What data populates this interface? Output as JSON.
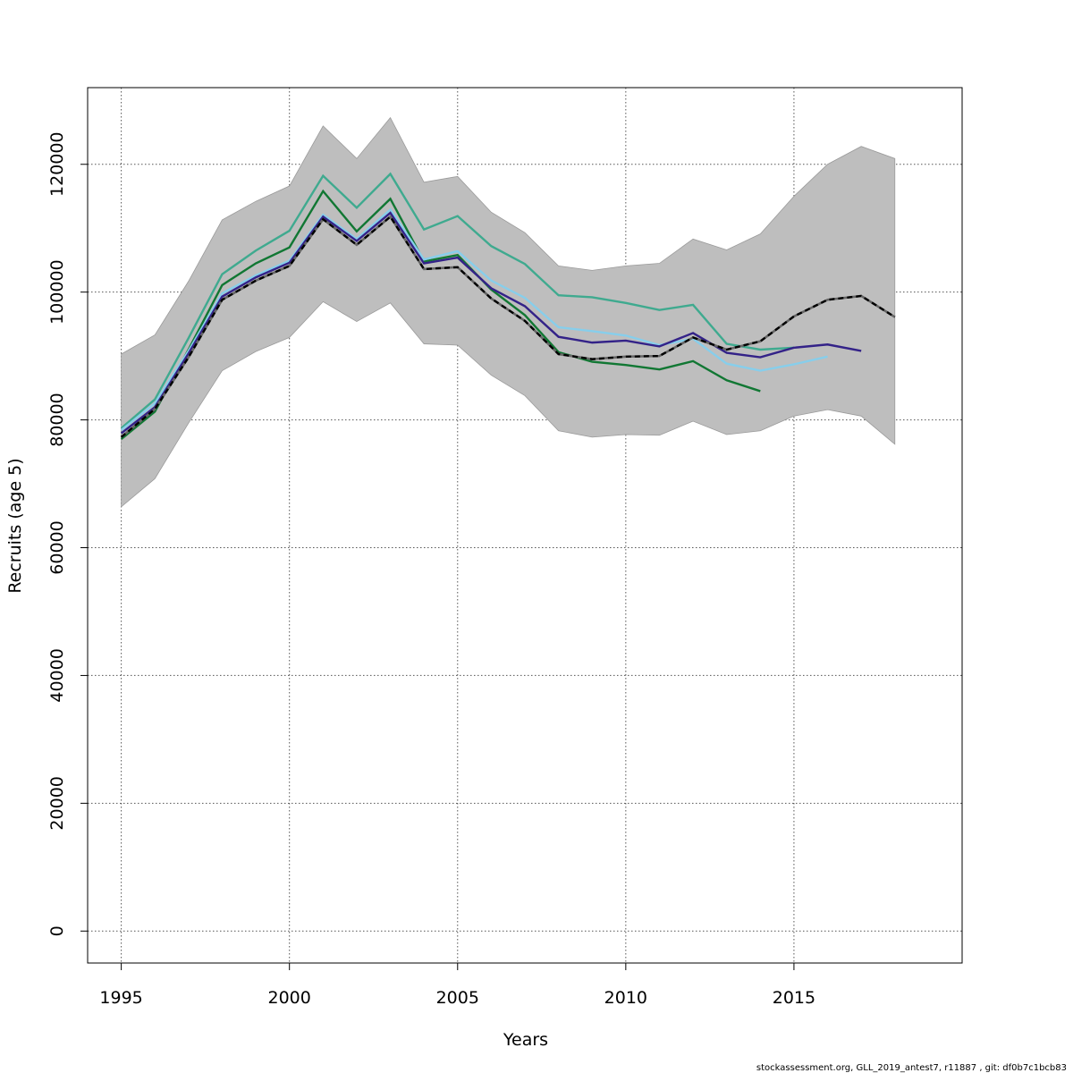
{
  "chart_data": {
    "type": "line",
    "title": "",
    "xlabel": "Years",
    "ylabel": "Recruits (age 5)",
    "xlim": [
      1994,
      2020
    ],
    "ylim": [
      -5000,
      132000
    ],
    "xticks": [
      1995,
      2000,
      2005,
      2010,
      2015
    ],
    "yticks": [
      0,
      20000,
      40000,
      60000,
      80000,
      100000,
      120000
    ],
    "grid": true,
    "confidence_band": {
      "color": "#bebebe",
      "x": [
        1995,
        1996,
        1997,
        1998,
        1999,
        2000,
        2001,
        2002,
        2003,
        2004,
        2005,
        2006,
        2007,
        2008,
        2009,
        2010,
        2011,
        2012,
        2013,
        2014,
        2015,
        2016,
        2017,
        2018
      ],
      "upper": [
        90300,
        93300,
        101700,
        111300,
        114200,
        116600,
        126000,
        120900,
        127300,
        117200,
        118100,
        112500,
        109300,
        104100,
        103400,
        104100,
        104500,
        108300,
        106600,
        109100,
        115000,
        120000,
        122800,
        120900
      ],
      "lower": [
        66400,
        70800,
        79500,
        87700,
        90700,
        92900,
        98500,
        95400,
        98300,
        91900,
        91700,
        87000,
        83800,
        78300,
        77300,
        77700,
        77600,
        79800,
        77700,
        78300,
        80600,
        81600,
        80600,
        76200
      ]
    },
    "series": [
      {
        "color": "#000000",
        "dashed": true,
        "x": [
          1995,
          1996,
          1997,
          1998,
          1999,
          2000,
          2001,
          2002,
          2003,
          2004,
          2005,
          2006,
          2007,
          2008,
          2009,
          2010,
          2011,
          2012,
          2013,
          2014,
          2015,
          2016,
          2017,
          2018
        ],
        "values": [
          77300,
          81700,
          89800,
          98800,
          101800,
          104100,
          111400,
          107400,
          111800,
          103600,
          103900,
          99000,
          95500,
          90300,
          89500,
          89900,
          90000,
          92900,
          91000,
          92300,
          96200,
          98800,
          99400,
          96100
        ]
      },
      {
        "color": "#3faa8f",
        "x": [
          1995,
          1996,
          1997,
          1998,
          1999,
          2000,
          2001,
          2002,
          2003,
          2004,
          2005,
          2006,
          2007,
          2008,
          2009,
          2010,
          2011,
          2012,
          2013,
          2014,
          2015
        ],
        "values": [
          78700,
          83200,
          92800,
          102800,
          106500,
          109600,
          118200,
          113200,
          118500,
          109800,
          111900,
          107200,
          104400,
          99500,
          99200,
          98300,
          97200,
          98000,
          91900,
          91000,
          91300
        ]
      },
      {
        "color": "#117733",
        "x": [
          1995,
          1996,
          1997,
          1998,
          1999,
          2000,
          2001,
          2002,
          2003,
          2004,
          2005,
          2006,
          2007,
          2008,
          2009,
          2010,
          2011,
          2012,
          2013,
          2014
        ],
        "values": [
          77000,
          81300,
          91000,
          101100,
          104500,
          107000,
          115800,
          109500,
          114600,
          104800,
          105800,
          100400,
          96400,
          90600,
          89100,
          88600,
          87900,
          89200,
          86200,
          84500
        ]
      },
      {
        "color": "#87ceeb",
        "x": [
          1995,
          1996,
          1997,
          1998,
          1999,
          2000,
          2001,
          2002,
          2003,
          2004,
          2005,
          2006,
          2007,
          2008,
          2009,
          2010,
          2011,
          2012,
          2013,
          2014,
          2015,
          2016
        ],
        "values": [
          78400,
          82600,
          90800,
          99800,
          102600,
          104900,
          112100,
          108300,
          112900,
          105100,
          106400,
          101800,
          99100,
          94500,
          93900,
          93200,
          91700,
          92700,
          88800,
          87700,
          88700,
          89900
        ]
      },
      {
        "color": "#332288",
        "x": [
          1995,
          1996,
          1997,
          1998,
          1999,
          2000,
          2001,
          2002,
          2003,
          2004,
          2005,
          2006,
          2007,
          2008,
          2009,
          2010,
          2011,
          2012,
          2013,
          2014,
          2015,
          2016,
          2017
        ],
        "values": [
          77900,
          82000,
          90400,
          99300,
          102300,
          104600,
          111800,
          108000,
          112400,
          104500,
          105400,
          100600,
          97800,
          93000,
          92100,
          92400,
          91500,
          93600,
          90500,
          89800,
          91300,
          91800,
          90800
        ]
      }
    ],
    "footer": "stockassessment.org, GLL_2019_antest7, r11887 , git: df0b7c1bcb83"
  }
}
